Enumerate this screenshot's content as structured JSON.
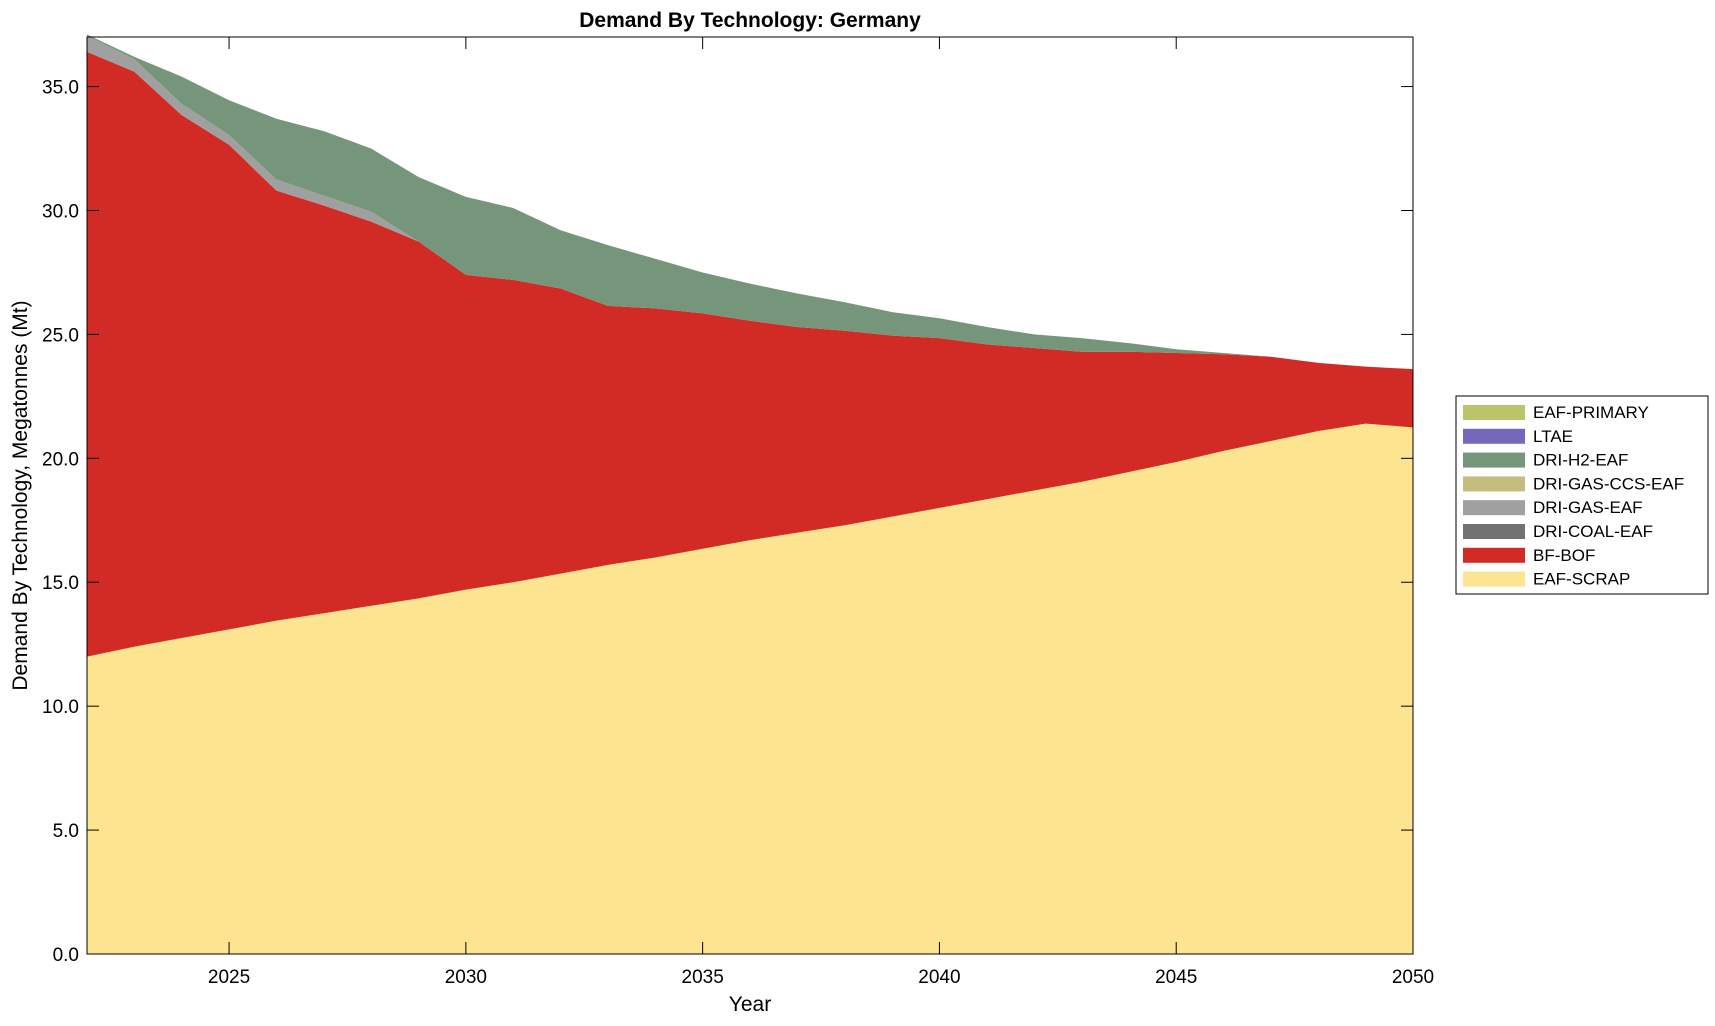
{
  "chart_data": {
    "type": "area",
    "stacked": true,
    "title": "Demand By Technology: Germany",
    "xlabel": "Year",
    "ylabel": "Demand By Technology, Megatonnes (Mt)",
    "xlim": [
      2022,
      2050
    ],
    "ylim": [
      0,
      37
    ],
    "x_ticks": [
      2025,
      2030,
      2035,
      2040,
      2045,
      2050
    ],
    "y_ticks": [
      "0.0",
      "5.0",
      "10.0",
      "15.0",
      "20.0",
      "25.0",
      "30.0",
      "35.0"
    ],
    "grid": false,
    "legend_position": "right",
    "x": [
      2022,
      2023,
      2024,
      2025,
      2026,
      2027,
      2028,
      2029,
      2030,
      2031,
      2032,
      2033,
      2034,
      2035,
      2036,
      2037,
      2038,
      2039,
      2040,
      2041,
      2042,
      2043,
      2044,
      2045,
      2046,
      2047,
      2048,
      2049,
      2050
    ],
    "series": [
      {
        "name": "EAF-SCRAP",
        "color": "#fde491",
        "values": [
          12.0,
          12.4,
          12.75,
          13.1,
          13.45,
          13.75,
          14.05,
          14.35,
          14.7,
          15.0,
          15.35,
          15.7,
          16.0,
          16.35,
          16.7,
          17.0,
          17.3,
          17.65,
          18.0,
          18.35,
          18.7,
          19.05,
          19.45,
          19.85,
          20.3,
          20.7,
          21.1,
          21.4,
          21.25
        ]
      },
      {
        "name": "BF-BOF",
        "color": "#d22a24",
        "values": [
          24.4,
          23.2,
          21.1,
          19.55,
          17.35,
          16.45,
          15.5,
          14.4,
          12.7,
          12.2,
          11.5,
          10.45,
          10.05,
          9.5,
          8.85,
          8.3,
          7.85,
          7.3,
          6.85,
          6.25,
          5.75,
          5.25,
          4.85,
          4.4,
          3.9,
          3.4,
          2.75,
          2.3,
          2.35
        ]
      },
      {
        "name": "DRI-COAL-EAF",
        "color": "#727272",
        "values": [
          0,
          0,
          0,
          0,
          0,
          0,
          0,
          0,
          0,
          0,
          0,
          0,
          0,
          0,
          0,
          0,
          0,
          0,
          0,
          0,
          0,
          0,
          0,
          0,
          0,
          0,
          0,
          0,
          0
        ]
      },
      {
        "name": "DRI-GAS-EAF",
        "color": "#a0a0a0",
        "values": [
          0.65,
          0.5,
          0.45,
          0.4,
          0.45,
          0.4,
          0.4,
          0.0,
          0,
          0,
          0,
          0,
          0,
          0,
          0,
          0,
          0,
          0,
          0,
          0,
          0,
          0,
          0,
          0,
          0,
          0,
          0,
          0,
          0
        ]
      },
      {
        "name": "DRI-GAS-CCS-EAF",
        "color": "#c5bd7d",
        "values": [
          0,
          0,
          0,
          0,
          0,
          0,
          0,
          0,
          0,
          0,
          0,
          0,
          0,
          0,
          0,
          0,
          0,
          0,
          0,
          0,
          0,
          0,
          0,
          0,
          0,
          0,
          0,
          0,
          0
        ]
      },
      {
        "name": "DRI-H2-EAF",
        "color": "#75967a",
        "values": [
          0.05,
          0.1,
          1.1,
          1.4,
          2.45,
          2.6,
          2.55,
          2.6,
          3.15,
          2.9,
          2.35,
          2.45,
          2.0,
          1.65,
          1.5,
          1.35,
          1.15,
          0.95,
          0.8,
          0.7,
          0.55,
          0.55,
          0.35,
          0.15,
          0.05,
          0,
          0,
          0,
          0
        ]
      },
      {
        "name": "LTAE",
        "color": "#7468bb",
        "values": [
          0,
          0,
          0,
          0,
          0,
          0,
          0,
          0,
          0,
          0,
          0,
          0,
          0,
          0,
          0,
          0,
          0,
          0,
          0,
          0,
          0,
          0,
          0,
          0,
          0,
          0,
          0,
          0,
          0
        ]
      },
      {
        "name": "EAF-PRIMARY",
        "color": "#bcc46a",
        "values": [
          0,
          0,
          0,
          0,
          0,
          0,
          0,
          0,
          0,
          0,
          0,
          0,
          0,
          0,
          0,
          0,
          0,
          0,
          0,
          0,
          0,
          0,
          0,
          0,
          0,
          0,
          0,
          0,
          0
        ]
      }
    ],
    "legend_order": [
      "EAF-PRIMARY",
      "LTAE",
      "DRI-H2-EAF",
      "DRI-GAS-CCS-EAF",
      "DRI-GAS-EAF",
      "DRI-COAL-EAF",
      "BF-BOF",
      "EAF-SCRAP"
    ]
  }
}
